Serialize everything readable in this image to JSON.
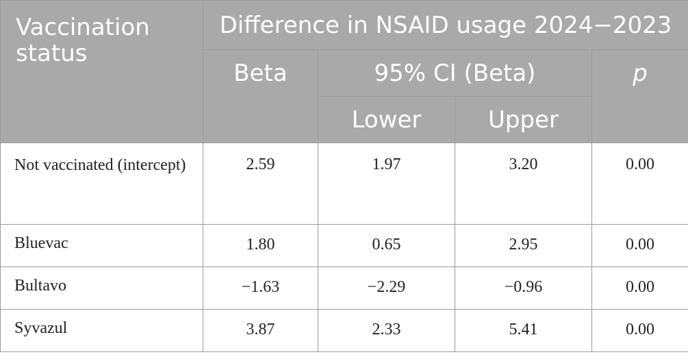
{
  "header": {
    "row_label": "Vaccination status",
    "group_title": "Difference in NSAID usage 2024−2023",
    "beta": "Beta",
    "ci": "95% CI (Beta)",
    "lower": "Lower",
    "upper": "Upper",
    "p": "p"
  },
  "rows": [
    {
      "label": "Not vaccinated (intercept)",
      "beta": "2.59",
      "lower": "1.97",
      "upper": "3.20",
      "p": "0.00"
    },
    {
      "label": "Bluevac",
      "beta": "1.80",
      "lower": "0.65",
      "upper": "2.95",
      "p": "0.00"
    },
    {
      "label": "Bultavo",
      "beta": "−1.63",
      "lower": "−2.29",
      "upper": "−0.96",
      "p": "0.00"
    },
    {
      "label": "Syvazul",
      "beta": "3.87",
      "lower": "2.33",
      "upper": "5.41",
      "p": "0.00"
    }
  ]
}
